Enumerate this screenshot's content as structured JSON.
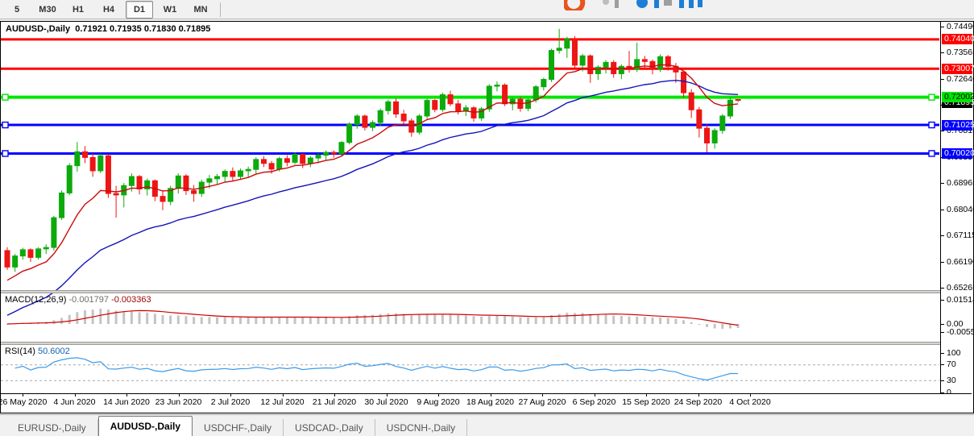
{
  "toolbar": {
    "buttons": [
      "5",
      "M30",
      "H1",
      "H4",
      "D1",
      "W1",
      "MN"
    ],
    "active": "D1"
  },
  "window": {
    "title_symbol": "AUDUSD-,Daily",
    "title_ohlc": "0.71921 0.71935 0.71830 0.71895"
  },
  "tabs": {
    "items": [
      "EURUSD-,Daily",
      "AUDUSD-,Daily",
      "USDCHF-,Daily",
      "USDCAD-,Daily",
      "USDCNH-,Daily"
    ],
    "active": "AUDUSD-,Daily"
  },
  "colors": {
    "candle_up": "#0caa0c",
    "candle_down": "#ee1515",
    "ma_fast": "#cc0a0a",
    "ma_slow": "#1414b8",
    "line_red": "#ff0000",
    "line_green": "#00e600",
    "line_blue": "#0000ff",
    "macd_hist": "#c4c4c4",
    "macd_signal": "#d00000",
    "rsi_line": "#3d9be9",
    "badge_current_bg": "#000000"
  },
  "chart_data": {
    "type": "candlestick",
    "symbol": "AUDUSD-",
    "timeframe": "Daily",
    "last_bar": {
      "open": 0.71921,
      "high": 0.71935,
      "low": 0.7183,
      "close": 0.71895
    },
    "current_price": {
      "label": "0.71895",
      "value": 0.71895
    },
    "y_ticks": [
      "0.74490",
      "0.73565",
      "0.72640",
      "0.71715",
      "0.70815",
      "0.69890",
      "0.68965",
      "0.68040",
      "0.67115",
      "0.66190",
      "0.65265"
    ],
    "x_labels": [
      "26 May 2020",
      "4 Jun 2020",
      "14 Jun 2020",
      "23 Jun 2020",
      "2 Jul 2020",
      "12 Jul 2020",
      "21 Jul 2020",
      "30 Jul 2020",
      "9 Aug 2020",
      "18 Aug 2020",
      "27 Aug 2020",
      "6 Sep 2020",
      "15 Sep 2020",
      "24 Sep 2020",
      "4 Oct 2020"
    ],
    "h_lines": [
      {
        "label": "0.74040",
        "value": 0.7404,
        "color": "#ff0000",
        "width": 3,
        "handles": false,
        "text": "#ffffff"
      },
      {
        "label": "0.73007",
        "value": 0.73007,
        "color": "#ff0000",
        "width": 3,
        "handles": false,
        "text": "#ffffff"
      },
      {
        "label": "0.72002",
        "value": 0.72002,
        "color": "#00e600",
        "width": 4,
        "handles": true,
        "text": "#000000"
      },
      {
        "label": "0.71025",
        "value": 0.71025,
        "color": "#0000ff",
        "width": 3,
        "handles": true,
        "text": "#ffffff"
      },
      {
        "label": "0.70020",
        "value": 0.7002,
        "color": "#0000ff",
        "width": 3,
        "handles": true,
        "text": "#ffffff"
      }
    ],
    "moving_averages": [
      {
        "name": "fast",
        "period": 10,
        "seed": 0.6545
      },
      {
        "name": "slow",
        "period": 30,
        "seed": 0.642
      }
    ],
    "candles": [
      [
        0.666,
        0.6672,
        0.6592,
        0.6602
      ],
      [
        0.6602,
        0.6648,
        0.6585,
        0.6641
      ],
      [
        0.6641,
        0.667,
        0.6628,
        0.6663
      ],
      [
        0.6663,
        0.6668,
        0.662,
        0.6636
      ],
      [
        0.6636,
        0.6672,
        0.6628,
        0.6666
      ],
      [
        0.6666,
        0.6682,
        0.6648,
        0.6671
      ],
      [
        0.6671,
        0.6782,
        0.666,
        0.6776
      ],
      [
        0.6776,
        0.6872,
        0.6768,
        0.6863
      ],
      [
        0.6863,
        0.6968,
        0.6855,
        0.6959
      ],
      [
        0.6959,
        0.7042,
        0.6938,
        0.7008
      ],
      [
        0.7008,
        0.7028,
        0.6968,
        0.6988
      ],
      [
        0.6988,
        0.7002,
        0.692,
        0.6941
      ],
      [
        0.6941,
        0.7002,
        0.6933,
        0.6994
      ],
      [
        0.6994,
        0.7,
        0.6846,
        0.6861
      ],
      [
        0.6861,
        0.6888,
        0.6776,
        0.6856
      ],
      [
        0.6856,
        0.6898,
        0.6812,
        0.6889
      ],
      [
        0.6889,
        0.6932,
        0.6868,
        0.6921
      ],
      [
        0.6921,
        0.6926,
        0.6858,
        0.6877
      ],
      [
        0.6877,
        0.6914,
        0.6854,
        0.6906
      ],
      [
        0.6906,
        0.6911,
        0.6834,
        0.6851
      ],
      [
        0.6851,
        0.6872,
        0.6802,
        0.6833
      ],
      [
        0.6833,
        0.6888,
        0.682,
        0.6879
      ],
      [
        0.6879,
        0.6932,
        0.6861,
        0.6923
      ],
      [
        0.6923,
        0.6929,
        0.6856,
        0.6871
      ],
      [
        0.6871,
        0.6891,
        0.6832,
        0.6861
      ],
      [
        0.6861,
        0.691,
        0.6849,
        0.6901
      ],
      [
        0.6901,
        0.6926,
        0.6879,
        0.6913
      ],
      [
        0.6913,
        0.693,
        0.6891,
        0.6921
      ],
      [
        0.6921,
        0.6946,
        0.6901,
        0.6939
      ],
      [
        0.6939,
        0.6953,
        0.6904,
        0.6921
      ],
      [
        0.6921,
        0.6949,
        0.6909,
        0.6941
      ],
      [
        0.6941,
        0.6956,
        0.6917,
        0.6946
      ],
      [
        0.6946,
        0.6989,
        0.6931,
        0.6981
      ],
      [
        0.6981,
        0.6993,
        0.6954,
        0.6967
      ],
      [
        0.6967,
        0.6976,
        0.6931,
        0.6947
      ],
      [
        0.6947,
        0.6991,
        0.6939,
        0.6984
      ],
      [
        0.6984,
        0.6996,
        0.6957,
        0.6971
      ],
      [
        0.6971,
        0.7006,
        0.6964,
        0.6999
      ],
      [
        0.6999,
        0.7003,
        0.6951,
        0.6967
      ],
      [
        0.6967,
        0.6993,
        0.6954,
        0.6986
      ],
      [
        0.6986,
        0.7003,
        0.6967,
        0.6996
      ],
      [
        0.6996,
        0.7013,
        0.6977,
        0.7006
      ],
      [
        0.7006,
        0.7013,
        0.6987,
        0.7001
      ],
      [
        0.7001,
        0.7046,
        0.6994,
        0.7041
      ],
      [
        0.7041,
        0.7112,
        0.7034,
        0.7104
      ],
      [
        0.7104,
        0.7141,
        0.7089,
        0.7134
      ],
      [
        0.7134,
        0.7139,
        0.7083,
        0.7094
      ],
      [
        0.7094,
        0.7119,
        0.7081,
        0.7111
      ],
      [
        0.7111,
        0.7161,
        0.7099,
        0.7153
      ],
      [
        0.7153,
        0.7191,
        0.7139,
        0.7184
      ],
      [
        0.7184,
        0.7196,
        0.7128,
        0.7141
      ],
      [
        0.7141,
        0.7156,
        0.7104,
        0.7117
      ],
      [
        0.7117,
        0.7126,
        0.7061,
        0.7077
      ],
      [
        0.7077,
        0.7141,
        0.7069,
        0.7134
      ],
      [
        0.7134,
        0.7196,
        0.7124,
        0.7189
      ],
      [
        0.7189,
        0.7193,
        0.7147,
        0.7157
      ],
      [
        0.7157,
        0.7216,
        0.7149,
        0.7209
      ],
      [
        0.7209,
        0.7223,
        0.7169,
        0.7177
      ],
      [
        0.7177,
        0.7191,
        0.7139,
        0.7151
      ],
      [
        0.7151,
        0.7173,
        0.7134,
        0.7163
      ],
      [
        0.7163,
        0.7169,
        0.7114,
        0.7127
      ],
      [
        0.7127,
        0.7166,
        0.7117,
        0.7159
      ],
      [
        0.7159,
        0.7246,
        0.7149,
        0.7239
      ],
      [
        0.7239,
        0.7256,
        0.7221,
        0.7243
      ],
      [
        0.7243,
        0.7249,
        0.7169,
        0.7177
      ],
      [
        0.7177,
        0.7199,
        0.7154,
        0.7193
      ],
      [
        0.7193,
        0.7201,
        0.7149,
        0.7161
      ],
      [
        0.7161,
        0.7196,
        0.7151,
        0.7191
      ],
      [
        0.7191,
        0.7243,
        0.7181,
        0.7237
      ],
      [
        0.7237,
        0.7269,
        0.7224,
        0.7263
      ],
      [
        0.7263,
        0.7371,
        0.7254,
        0.7365
      ],
      [
        0.7365,
        0.7441,
        0.7354,
        0.7373
      ],
      [
        0.7373,
        0.7413,
        0.7339,
        0.7406
      ],
      [
        0.7406,
        0.7415,
        0.7304,
        0.7313
      ],
      [
        0.7313,
        0.7353,
        0.7291,
        0.7346
      ],
      [
        0.7346,
        0.7351,
        0.7251,
        0.7283
      ],
      [
        0.7283,
        0.7313,
        0.7261,
        0.7306
      ],
      [
        0.7306,
        0.7331,
        0.7284,
        0.7323
      ],
      [
        0.7323,
        0.7331,
        0.7269,
        0.7283
      ],
      [
        0.7283,
        0.7316,
        0.7264,
        0.7309
      ],
      [
        0.7309,
        0.7363,
        0.7287,
        0.7299
      ],
      [
        0.7299,
        0.7393,
        0.7289,
        0.7333
      ],
      [
        0.7333,
        0.7346,
        0.7304,
        0.7326
      ],
      [
        0.7326,
        0.7333,
        0.7281,
        0.7299
      ],
      [
        0.7299,
        0.7351,
        0.7289,
        0.7343
      ],
      [
        0.7343,
        0.7349,
        0.7294,
        0.7309
      ],
      [
        0.7309,
        0.7321,
        0.7251,
        0.7289
      ],
      [
        0.7289,
        0.7293,
        0.7199,
        0.7216
      ],
      [
        0.7216,
        0.7229,
        0.7127,
        0.7156
      ],
      [
        0.7156,
        0.7166,
        0.7058,
        0.7091
      ],
      [
        0.7091,
        0.7106,
        0.7006,
        0.7039
      ],
      [
        0.7039,
        0.7091,
        0.7019,
        0.7083
      ],
      [
        0.7083,
        0.7141,
        0.7071,
        0.7134
      ],
      [
        0.7134,
        0.7201,
        0.7124,
        0.719
      ],
      [
        0.71921,
        0.71935,
        0.7183,
        0.71895
      ]
    ],
    "macd": {
      "label": "MACD(12,26,9)",
      "value1": "-0.001797",
      "value2": "-0.003363",
      "fast": 12,
      "slow": 26,
      "signal": 9,
      "y_ticks": [
        {
          "label": "0.015142",
          "value": 0.015142
        },
        {
          "label": "0.00",
          "value": 0.0
        },
        {
          "label": "-0.005595",
          "value": -0.005595
        }
      ]
    },
    "rsi": {
      "label": "RSI(14)",
      "value": "50.6002",
      "period": 14,
      "levels": [
        70,
        30
      ],
      "y_ticks": [
        {
          "label": "100",
          "value": 100
        },
        {
          "label": "70",
          "value": 70
        },
        {
          "label": "30",
          "value": 30
        },
        {
          "label": "0",
          "value": 0
        }
      ]
    }
  }
}
